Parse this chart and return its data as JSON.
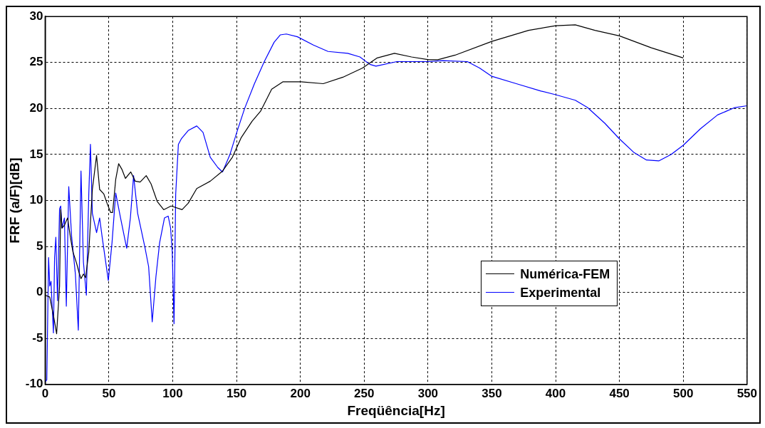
{
  "chart_data": {
    "type": "line",
    "xlabel": "Freqüência[Hz]",
    "ylabel": "FRF (a/F)[dB]",
    "xlim": [
      0,
      550
    ],
    "xticks": [
      0,
      50,
      100,
      150,
      200,
      250,
      300,
      350,
      400,
      450,
      500,
      550
    ],
    "ylim": [
      -10,
      30
    ],
    "yticks": [
      -10,
      -5,
      0,
      5,
      10,
      15,
      20,
      25,
      30
    ],
    "grid": true,
    "legend": "right",
    "line_style": "solid",
    "marker": "none",
    "series": [
      {
        "name": "Numérica-FEM",
        "color": "#000000",
        "x": [
          0,
          3.6,
          6.5,
          9,
          11.3,
          12.2,
          13.2,
          15.1,
          17.6,
          19.8,
          21.8,
          24.6,
          26.5,
          28.1,
          30,
          31.7,
          34.2,
          37,
          40.3,
          42.7,
          46,
          48.5,
          51.3,
          52.9,
          55.3,
          57.6,
          60.1,
          62.9,
          67.1,
          70.6,
          74.4,
          79.2,
          83,
          87.8,
          92.9,
          98.7,
          107.3,
          112.1,
          118.8,
          129.4,
          139,
          146.7,
          153.5,
          162.1,
          168.8,
          177.5,
          186.2,
          200.6,
          217.9,
          233.3,
          248.7,
          260.2,
          273.7,
          287.1,
          300.6,
          307.7,
          321.2,
          350,
          378.8,
          400,
          415.4,
          430.8,
          450,
          475,
          500
        ],
        "values": [
          -0.3,
          -0.5,
          -2.5,
          -4.5,
          0.7,
          9,
          7,
          7.3,
          8.1,
          6,
          4.4,
          3.2,
          2.2,
          1.5,
          2,
          1.6,
          4.4,
          11.2,
          14.9,
          11.2,
          10.7,
          9.7,
          8.7,
          8.7,
          12.3,
          14,
          13.4,
          12.4,
          13.1,
          12.1,
          12,
          12.7,
          11.8,
          9.9,
          9,
          9.4,
          9,
          9.7,
          11.3,
          12.1,
          13.2,
          14.7,
          16.8,
          18.6,
          19.7,
          22.1,
          22.9,
          22.9,
          22.7,
          23.4,
          24.4,
          25.5,
          26,
          25.6,
          25.3,
          25.3,
          25.8,
          27.3,
          28.5,
          29,
          29.1,
          28.5,
          27.9,
          26.6,
          25.5
        ]
      },
      {
        "name": "Experimental",
        "color": "#0000ff",
        "x": [
          0.2,
          1.3,
          2.7,
          3.6,
          4.6,
          5.5,
          6.5,
          7.4,
          8.4,
          9.7,
          11.3,
          12.2,
          13.2,
          15.1,
          16.6,
          18.5,
          20.8,
          23.7,
          26,
          28.1,
          30,
          32.3,
          34.2,
          35.5,
          37,
          40.3,
          42.7,
          44.7,
          49.5,
          52.4,
          55.3,
          59.1,
          63.9,
          66.8,
          69.3,
          72.5,
          78.2,
          81.1,
          83.9,
          86.8,
          89.7,
          93.5,
          96.4,
          98.3,
          99.6,
          101,
          102.3,
          104.4,
          106.7,
          112.1,
          118.8,
          123.7,
          129.4,
          135.2,
          139,
          144.8,
          150.6,
          156.3,
          164,
          171.7,
          179.4,
          184.2,
          189,
          197.7,
          210.2,
          221.7,
          237.1,
          246.7,
          254.4,
          259.2,
          275.6,
          300.6,
          311.5,
          330.8,
          340.4,
          350,
          369.2,
          388.5,
          400,
          415.4,
          425,
          438.5,
          450,
          461.5,
          471.2,
          480.8,
          490.4,
          500,
          513.5,
          526.9,
          540.4,
          550
        ],
        "values": [
          -9.7,
          -9.5,
          3.8,
          0.7,
          1.2,
          -1.5,
          -4.4,
          3.8,
          6,
          -0.9,
          9.1,
          9.4,
          7,
          8.1,
          -1.5,
          11.5,
          6,
          2,
          -4.1,
          13.2,
          3.3,
          -0.3,
          10.7,
          16.1,
          8.6,
          6.5,
          8.1,
          6,
          1.3,
          5.4,
          10.8,
          8.1,
          4.8,
          8.1,
          12.7,
          8.6,
          4.9,
          2.8,
          -3.2,
          1.7,
          5.4,
          8.1,
          8.3,
          7,
          4.4,
          -3.4,
          10.7,
          16.1,
          16.7,
          17.6,
          18.1,
          17.4,
          14.7,
          13.6,
          13.1,
          15,
          17.6,
          20,
          22.7,
          25.1,
          27.2,
          28,
          28.1,
          27.8,
          26.9,
          26.2,
          26,
          25.6,
          24.8,
          24.6,
          25.1,
          25.1,
          25.2,
          25.1,
          24.4,
          23.5,
          22.7,
          21.9,
          21.5,
          20.9,
          20.1,
          18.4,
          16.7,
          15.2,
          14.4,
          14.3,
          15,
          16,
          17.8,
          19.3,
          20.1,
          20.3
        ]
      }
    ]
  }
}
